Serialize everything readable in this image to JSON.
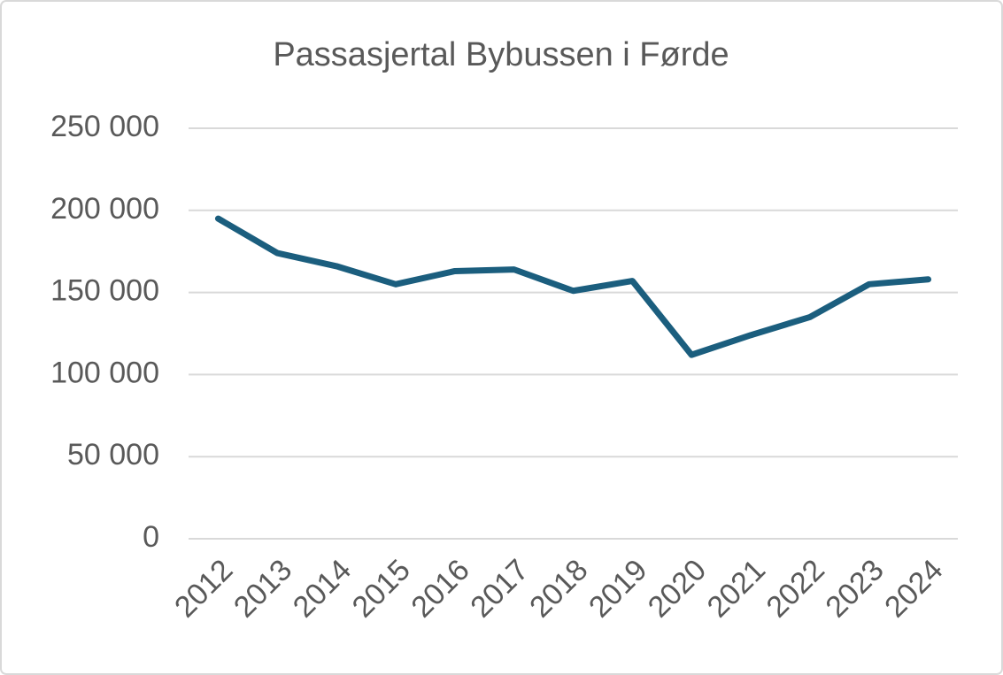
{
  "chart_data": {
    "type": "line",
    "title": "Passasjertal Bybussen i Førde",
    "categories": [
      "2012",
      "2013",
      "2014",
      "2015",
      "2016",
      "2017",
      "2018",
      "2019",
      "2020",
      "2021",
      "2022",
      "2023",
      "2024"
    ],
    "series": [
      {
        "name": "Passasjertal",
        "color": "#1b5e7e",
        "values": [
          195000,
          174000,
          166000,
          155000,
          163000,
          164000,
          151000,
          157000,
          112000,
          124000,
          135000,
          155000,
          158000
        ]
      }
    ],
    "ylim": [
      0,
      250000
    ],
    "yticks": [
      0,
      {
        "value": 50000,
        "label": "50 000"
      },
      {
        "value": 100000,
        "label": "100 000"
      },
      {
        "value": 150000,
        "label": "150 000"
      },
      {
        "value": 200000,
        "label": "200 000"
      },
      {
        "value": 250000,
        "label": "250 000"
      }
    ],
    "grid": true
  }
}
